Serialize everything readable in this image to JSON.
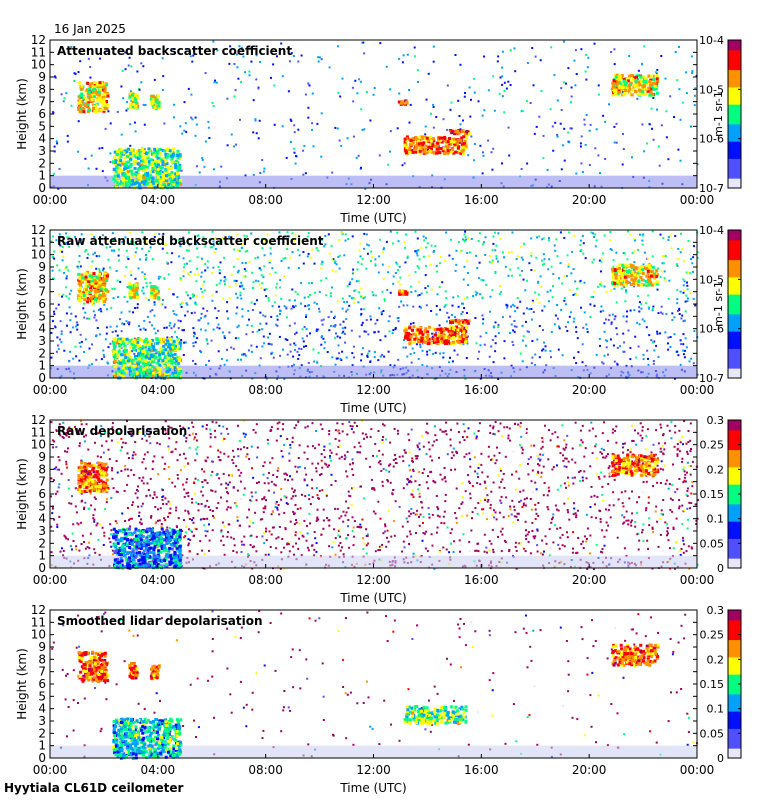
{
  "date": "16 Jan 2025",
  "site": "Hyytiala CL61D ceilometer",
  "colors": {
    "background": "#ffffff",
    "axis": "#000000",
    "low_signal": "#d8d8e8",
    "colormap": [
      "#e8e8f8",
      "#5050ff",
      "#0010ff",
      "#00a0ff",
      "#00ff80",
      "#ffff00",
      "#ff9000",
      "#ff0000",
      "#a00060"
    ]
  },
  "chart_data": [
    {
      "type": "heatmap",
      "title": "Attenuated backscatter coefficient",
      "xlabel": "Time (UTC)",
      "ylabel": "Height (km)",
      "x_ticks": [
        "00:00",
        "04:00",
        "08:00",
        "12:00",
        "16:00",
        "20:00",
        "00:00"
      ],
      "y_ticks": [
        "0",
        "1",
        "2",
        "3",
        "4",
        "5",
        "6",
        "7",
        "8",
        "9",
        "10",
        "11",
        "12"
      ],
      "ylim": [
        0,
        12
      ],
      "xlim_hours": [
        0,
        24
      ],
      "colorbar": {
        "scale": "log",
        "ticks": [
          "10-7",
          "10-6",
          "10-5",
          "10-4"
        ],
        "unit": "m-1 sr-1"
      },
      "noise": 0.25,
      "features": [
        {
          "t0": 1.0,
          "t1": 2.1,
          "h0": 6.3,
          "h1": 8.7,
          "v": 0.85
        },
        {
          "t0": 2.9,
          "t1": 3.2,
          "h0": 6.6,
          "h1": 7.8,
          "v": 0.8
        },
        {
          "t0": 3.7,
          "t1": 4.0,
          "h0": 6.5,
          "h1": 7.6,
          "v": 0.8
        },
        {
          "t0": 2.3,
          "t1": 4.8,
          "h0": 0.1,
          "h1": 3.3,
          "v": 0.7
        },
        {
          "t0": 12.9,
          "t1": 13.2,
          "h0": 6.9,
          "h1": 7.2,
          "v": 1.0
        },
        {
          "t0": 13.1,
          "t1": 15.4,
          "h0": 2.9,
          "h1": 4.3,
          "v": 0.95
        },
        {
          "t0": 14.8,
          "t1": 15.5,
          "h0": 4.5,
          "h1": 4.8,
          "v": 1.0
        },
        {
          "t0": 20.8,
          "t1": 22.5,
          "h0": 7.6,
          "h1": 9.3,
          "v": 0.85
        }
      ]
    },
    {
      "type": "heatmap",
      "title": "Raw attenuated backscatter coefficient",
      "xlabel": "Time (UTC)",
      "ylabel": "Height (km)",
      "x_ticks": [
        "00:00",
        "04:00",
        "08:00",
        "12:00",
        "16:00",
        "20:00",
        "00:00"
      ],
      "y_ticks": [
        "0",
        "1",
        "2",
        "3",
        "4",
        "5",
        "6",
        "7",
        "8",
        "9",
        "10",
        "11",
        "12"
      ],
      "ylim": [
        0,
        12
      ],
      "xlim_hours": [
        0,
        24
      ],
      "colorbar": {
        "scale": "log",
        "ticks": [
          "10-7",
          "10-6",
          "10-5",
          "10-4"
        ],
        "unit": "m-1 sr-1"
      },
      "noise": 0.85,
      "features": [
        {
          "t0": 1.0,
          "t1": 2.1,
          "h0": 6.3,
          "h1": 8.7,
          "v": 0.85
        },
        {
          "t0": 2.9,
          "t1": 3.2,
          "h0": 6.6,
          "h1": 7.8,
          "v": 0.8
        },
        {
          "t0": 3.7,
          "t1": 4.0,
          "h0": 6.5,
          "h1": 7.6,
          "v": 0.8
        },
        {
          "t0": 2.3,
          "t1": 4.8,
          "h0": 0.1,
          "h1": 3.3,
          "v": 0.7
        },
        {
          "t0": 12.9,
          "t1": 13.2,
          "h0": 6.9,
          "h1": 7.2,
          "v": 1.0
        },
        {
          "t0": 13.1,
          "t1": 15.4,
          "h0": 2.9,
          "h1": 4.3,
          "v": 0.95
        },
        {
          "t0": 14.8,
          "t1": 15.5,
          "h0": 4.5,
          "h1": 4.8,
          "v": 1.0
        },
        {
          "t0": 20.8,
          "t1": 22.5,
          "h0": 7.6,
          "h1": 9.3,
          "v": 0.85
        }
      ]
    },
    {
      "type": "heatmap",
      "title": "Raw depolarisation",
      "xlabel": "Time (UTC)",
      "ylabel": "Height (km)",
      "x_ticks": [
        "00:00",
        "04:00",
        "08:00",
        "12:00",
        "16:00",
        "20:00",
        "00:00"
      ],
      "y_ticks": [
        "0",
        "1",
        "2",
        "3",
        "4",
        "5",
        "6",
        "7",
        "8",
        "9",
        "10",
        "11",
        "12"
      ],
      "ylim": [
        0,
        12
      ],
      "xlim_hours": [
        0,
        24
      ],
      "colorbar": {
        "scale": "linear",
        "ticks": [
          "0",
          "0.05",
          "0.1",
          "0.15",
          "0.2",
          "0.25",
          "0.3"
        ],
        "unit": ""
      },
      "noise": 0.95,
      "features": [
        {
          "t0": 1.0,
          "t1": 2.1,
          "h0": 6.3,
          "h1": 8.7,
          "v": 0.95
        },
        {
          "t0": 2.3,
          "t1": 4.8,
          "h0": 0.1,
          "h1": 3.3,
          "v": 0.5
        },
        {
          "t0": 20.8,
          "t1": 22.5,
          "h0": 7.6,
          "h1": 9.3,
          "v": 0.95
        }
      ]
    },
    {
      "type": "heatmap",
      "title": "Smoothed lidar depolarisation",
      "xlabel": "Time (UTC)",
      "ylabel": "Height (km)",
      "x_ticks": [
        "00:00",
        "04:00",
        "08:00",
        "12:00",
        "16:00",
        "20:00",
        "00:00"
      ],
      "y_ticks": [
        "0",
        "1",
        "2",
        "3",
        "4",
        "5",
        "6",
        "7",
        "8",
        "9",
        "10",
        "11",
        "12"
      ],
      "ylim": [
        0,
        12
      ],
      "xlim_hours": [
        0,
        24
      ],
      "colorbar": {
        "scale": "linear",
        "ticks": [
          "0",
          "0.05",
          "0.1",
          "0.15",
          "0.2",
          "0.25",
          "0.3"
        ],
        "unit": ""
      },
      "noise": 0.12,
      "features": [
        {
          "t0": 1.0,
          "t1": 2.1,
          "h0": 6.3,
          "h1": 8.7,
          "v": 0.98
        },
        {
          "t0": 2.9,
          "t1": 3.2,
          "h0": 6.6,
          "h1": 7.8,
          "v": 0.98
        },
        {
          "t0": 3.7,
          "t1": 4.0,
          "h0": 6.5,
          "h1": 7.6,
          "v": 0.98
        },
        {
          "t0": 2.3,
          "t1": 4.8,
          "h0": 0.1,
          "h1": 3.3,
          "v": 0.6
        },
        {
          "t0": 13.1,
          "t1": 15.4,
          "h0": 2.9,
          "h1": 4.3,
          "v": 0.7
        },
        {
          "t0": 20.8,
          "t1": 22.5,
          "h0": 7.6,
          "h1": 9.3,
          "v": 0.98
        }
      ]
    }
  ]
}
